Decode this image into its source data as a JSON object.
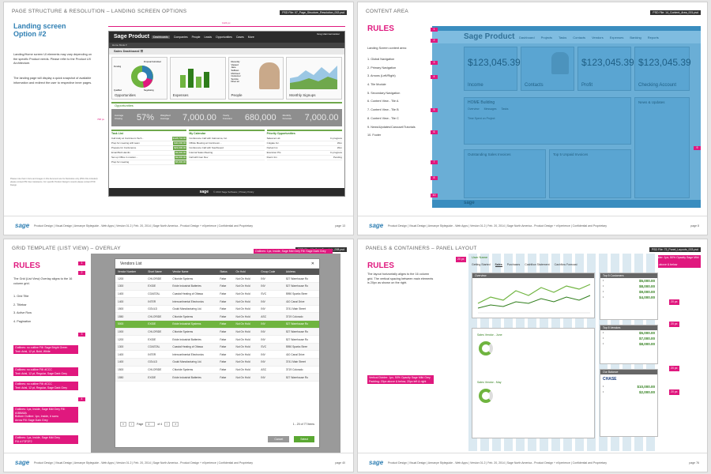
{
  "footer": {
    "logo": "sage",
    "text": "Product Design  |  Visual Design  |  Armanye Styleguide - Web Apps  |  Version 01.2  |  Feb. 20, 2014  |  Sage North America - Product Design + eXperience  |  Confidential and Proprietary"
  },
  "p1": {
    "title": "PAGE STRUCTURE & RESOLUTION – LANDING SCREEN OPTIONS",
    "psd": "PSD File: 07_Page_Structure_Resolution_002.psd",
    "heading": "Landing screen\nOption #2",
    "para1": "Landing/Home screen UI elements may vary depending on the specific Product needs. Please refer to the Product UX Architecture.",
    "para2": "The landing page will display a quick snapshot of available information and redirect the user to respective inner pages.",
    "note": "Please note that in here and images in this document are for illustrative only (PNG File included) please contact PM User Assistance. For specific Product Design's rework please contact PXD Design.",
    "dim_w": "1124 px",
    "dim_h": "768 px",
    "page": "page 13",
    "app": {
      "brand": "Sage Product",
      "nav": [
        "Dashboards",
        "Companies",
        "People",
        "Leads",
        "Opportunities",
        "Cases",
        "More"
      ],
      "user": "Greg Hammermeister",
      "sub": "Home Mode ▾",
      "dashboard": "Sales Dashboard ☰",
      "tiles": [
        "Opportunities",
        "Expenses",
        "People",
        "Monthly Signups"
      ],
      "pie_labels": [
        "Pending",
        "Proposal Submitted",
        "Qualified",
        "Negotiating"
      ],
      "person": [
        "Recently",
        "Viewed",
        "Jane",
        "Sullivan",
        "McCloud",
        "Customer",
        "Service",
        "Direc.tor"
      ],
      "section": "Opportunities",
      "stats": [
        {
          "label": "Average Closing",
          "value": "57%"
        },
        {
          "label": "Weighted Average",
          "value": "7,000.00"
        },
        {
          "label": "Yearly Forecast",
          "value": "680,000"
        },
        {
          "label": "Monthly Forecast",
          "value": "7,000.00"
        }
      ],
      "lists": [
        {
          "title": "Task List",
          "rows": [
            [
              "Call Andy at Continuum Tech...",
              "$128,744.00"
            ],
            [
              "Prep for meeting with team",
              "$40,000.00"
            ],
            [
              "Prepare for Conference",
              "$22,000.00"
            ],
            [
              "Email Bob Hamlin",
              "$9,000.00"
            ],
            [
              "Set up Office in custom...",
              "$9,000.00"
            ],
            [
              "Prep for meeting",
              "$5,000.00"
            ]
          ]
        },
        {
          "title": "My Calendar",
          "rows": [
            [
              "Conference Call with Calmonna, Inc.",
              ""
            ],
            [
              "Offsite Meeting at Continuum...",
              ""
            ],
            [
              "Conference Call with Southwood",
              ""
            ],
            [
              "Internal Sales Meeting",
              ""
            ],
            [
              "Call with Gen Dev",
              ""
            ]
          ]
        },
        {
          "title": "Priority Opportunities",
          "rows": [
            [
              "Salesnet Ltd.",
              "In progress"
            ],
            [
              "Colgate Inc.",
              "Won"
            ],
            [
              "Nortek Inc.",
              "Won"
            ],
            [
              "Examiner Plc.",
              "In progress"
            ],
            [
              "Doorn Inc.",
              "Pending"
            ]
          ]
        }
      ],
      "foot_brand": "sage",
      "foot": "© 2013 Sage Software  |  Privacy Policy"
    }
  },
  "p2": {
    "title": "CONTENT AREA",
    "psd": "PSD File: 14_Content_Area_001.psd",
    "heading": "RULES",
    "intro": "Landing Screen content area:",
    "items": [
      "1. Global Navigation",
      "2. Primary Navigation",
      "3. Arrows (Left/Right)",
      "4. Tile Module",
      "5. Secondary Navigation",
      "6. Content View - Tile A",
      "7. Content View - Tile B",
      "8. Content View - Tile C",
      "9. News/Updates/Carousel/Tutorials",
      "10. Footer"
    ],
    "page": "page 8",
    "app": {
      "brand": "Sage Product",
      "nav": [
        "Dashboard",
        "Projects",
        "Tasks",
        "Contacts",
        "Vendors",
        "Expenses",
        "Banking",
        "Reports"
      ],
      "tiles": [
        {
          "big": "$123,045.39",
          "label": "Income"
        },
        {
          "big": "",
          "label": "Contacts"
        },
        {
          "big": "$123,045.39",
          "label": "Profit"
        },
        {
          "big": "$123,045.39",
          "label": "Checking Account"
        }
      ],
      "home": "HOME Building",
      "home_tabs": [
        "Overview",
        "Messages",
        "Tasks"
      ],
      "project": "Time Spent on Project",
      "news": "News & Updates",
      "outstanding": "Outstanding Sales Invoices",
      "unpaid": "Top 5 Unpaid Invoices",
      "footer_brand": "sage",
      "numbers": [
        "1",
        "2",
        "3",
        "4",
        "5",
        "6",
        "7",
        "8",
        "9",
        "10"
      ]
    }
  },
  "p3": {
    "title": "GRID TEMPLATE (LIST VIEW) – OVERLAY",
    "psd": "PSD File: 16_Grid_Template_008.psd",
    "heading": "RULES",
    "para": "The Grid (List View) Overlay aligns to the 16 column grid.",
    "items": [
      "1. Grid Title",
      "2. Titlebar",
      "3. Active Row",
      "4. Pagination"
    ],
    "tags": [
      "Outlines: no outline    Fill: Sage Bright Green\nText: Arial, 12 pt, Bold, White",
      "Outlines: no outline    Fill: #CCC\nText: Arial, 12 pt, Regular, Sage Dark Grey",
      "Outlines: no outline    Fill: #CCC\nText: Arial, 12 pt, Regular, Sage Dark Grey",
      "Outlines: 1px, Inside, Sage Mid Grey  Fill: #1B8A8A\nBottom Outline: 1px, Inside, # scmu\nArrow Fill: Sage Dark Grey",
      "Outlines: 1px, Inside, Sage Mid Grey\nFill: # F2F2F2"
    ],
    "tag_top": "Outlines: 1px, Inside, Sage Mid Grey   Fill: Sage Dark Grey\nText: Arial, 12 pt, Bold, ####",
    "page": "page 40",
    "modal": {
      "title": "Vendors List",
      "close": "✕",
      "headers": [
        "Vendor Number",
        "Short Name",
        "Vendor Name",
        "Status",
        "On Hold",
        "Group Code",
        "Address"
      ],
      "rows": [
        [
          "1200",
          "CHLORIDE",
          "Chloride Systems",
          "False",
          "Not On Hold",
          "INV",
          "527 Warehouse Ro"
        ],
        [
          "1300",
          "EXIDE",
          "Exide Industrial Batteries",
          "False",
          "Not On Hold",
          "INV",
          "527 Warehouse Ro"
        ],
        [
          "1400",
          "COASTAL",
          "Coastal Heating of Ottawa",
          "False",
          "Not On Hold",
          "SVC",
          "5950 Sparks Stree"
        ],
        [
          "1400",
          "INTER",
          "Intercontinental Electronics",
          "False",
          "Not On Hold",
          "INV",
          "410 Canal Drive"
        ],
        [
          "1500",
          "GOULD",
          "Gould Manufacturing Ltd.",
          "False",
          "Not On Hold",
          "INV",
          "3741 Main Street"
        ],
        [
          "1550",
          "CHLORIDE",
          "Chloride Systems",
          "False",
          "Not On Hold",
          "ASC",
          "3719 Colorado"
        ],
        [
          "5000",
          "EXIDE",
          "Exide Industrial Systems",
          "False",
          "Not On Hold",
          "INV",
          "527 Warehouse Ro"
        ],
        [
          "1000",
          "CHLORIDE",
          "Chloride Systems",
          "False",
          "Not On Hold",
          "INV",
          "527 Warehouse Ro"
        ],
        [
          "1200",
          "EXIDE",
          "Exide Industrial Batteries",
          "False",
          "Not On Hold",
          "INV",
          "527 Warehouse Ro"
        ],
        [
          "1300",
          "COASTAL",
          "Coastal Heating of Ottawa",
          "False",
          "Not On Hold",
          "SVC",
          "5950 Sparks Stree"
        ],
        [
          "1400",
          "INTER",
          "Intercontinental Electronics",
          "False",
          "Not On Hold",
          "INV",
          "410 Canal Drive"
        ],
        [
          "1400",
          "GOULD",
          "Gould Manufacturing Ltd.",
          "False",
          "Not On Hold",
          "INV",
          "3741 Main Street"
        ],
        [
          "1500",
          "CHLORIDE",
          "Chloride Systems",
          "False",
          "Not On Hold",
          "ASC",
          "3719 Colorado"
        ],
        [
          "1550",
          "EXIDE",
          "Exide Industrial Batteries",
          "False",
          "Not On Hold",
          "INV",
          "527 Warehouse Ro"
        ]
      ],
      "selected_index": 6,
      "pager": {
        "page_label": "Page",
        "page": "1",
        "of": "of 4"
      },
      "count": "1 - 20 of 77 Items",
      "cancel": "Cancel",
      "select": "Select"
    }
  },
  "p4": {
    "title": "PANELS & CONTAINERS – PANEL LAYOUT",
    "psd": "PSD File: 73_Panel_Layouts_003.psd",
    "heading": "RULES",
    "para": "The layout horizontally aligns to the 16 column grid. The vertical spacing between main elements is 20px as shown on the right.",
    "tag_right": "Horizontal Divider: 1px, 50% Opacity Sage Mild Grey\nPadding: 20px above & below",
    "tag_left": "Vertical Divider: 1px, 50% Opacity Sage Mild Grey\nPadding: 20px above & below, 20px left & right",
    "page": "page 76",
    "app": {
      "user": "User Name",
      "tabs": [
        "Getting Started",
        "Sales",
        "Purchases",
        "Cashflow Statement",
        "Cashflow Forecast"
      ],
      "overview": "Overview",
      "side": [
        {
          "title": "Top 5 Customers",
          "values": [
            "$5,000.00",
            "$8,000.00",
            "$9,000.00",
            "$4,000.00"
          ]
        },
        {
          "title": "Top 5 Vendors",
          "values": [
            "$5,000.00",
            "$7,000.00",
            "$8,000.00"
          ]
        },
        {
          "title": "Our Balance",
          "values": [
            "$10,000.00",
            "$2,000.00"
          ]
        }
      ],
      "bank": "CHASE",
      "donut1": "Sales Vendor - June",
      "donut2": "Sales Vendor - May",
      "chips": [
        "20 px",
        "20 px",
        "20 px",
        "20 px",
        "20 px"
      ]
    }
  }
}
